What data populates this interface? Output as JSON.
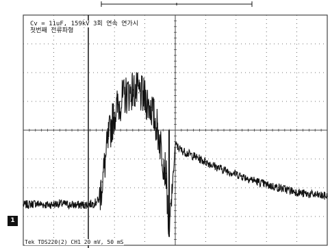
{
  "annotation": {
    "line1": "Cv = 11uF, 159kV 3회 연속 연가시",
    "line2": "첫번째 전류파형"
  },
  "status_bar": "Tek TDS220(2) CH1 20 mV, 50 mS",
  "channel_marker": "1",
  "colors": {
    "trace": "#111111",
    "grid": "#444444",
    "background": "#ffffff"
  },
  "chart_data": {
    "type": "line",
    "title": "",
    "xlabel": "",
    "ylabel": "",
    "x_unit": "ms",
    "y_unit": "mV",
    "time_per_div": "50 ms",
    "volts_per_div": "20 mV",
    "divisions": {
      "x": 10,
      "y": 8
    },
    "xlim": [
      0,
      500
    ],
    "ylim": [
      -80,
      80
    ],
    "grid": true,
    "series": [
      {
        "name": "",
        "x": [
          0,
          20,
          40,
          60,
          80,
          100,
          115,
          120,
          125,
          130,
          140,
          150,
          160,
          170,
          180,
          190,
          200,
          210,
          220,
          225,
          230,
          235,
          240,
          250,
          260,
          280,
          300,
          320,
          340,
          360,
          380,
          400,
          420,
          440,
          460,
          480,
          500
        ],
        "values": [
          -52,
          -51,
          -52,
          -51,
          -52,
          -52,
          -51,
          -50,
          -48,
          -36,
          -6,
          12,
          20,
          25,
          28,
          26,
          22,
          16,
          2,
          -8,
          -20,
          -30,
          -74,
          -10,
          -14,
          -18,
          -22,
          -26,
          -29,
          -32,
          -35,
          -38,
          -40,
          -42,
          -44,
          -45,
          -46
        ]
      }
    ]
  }
}
